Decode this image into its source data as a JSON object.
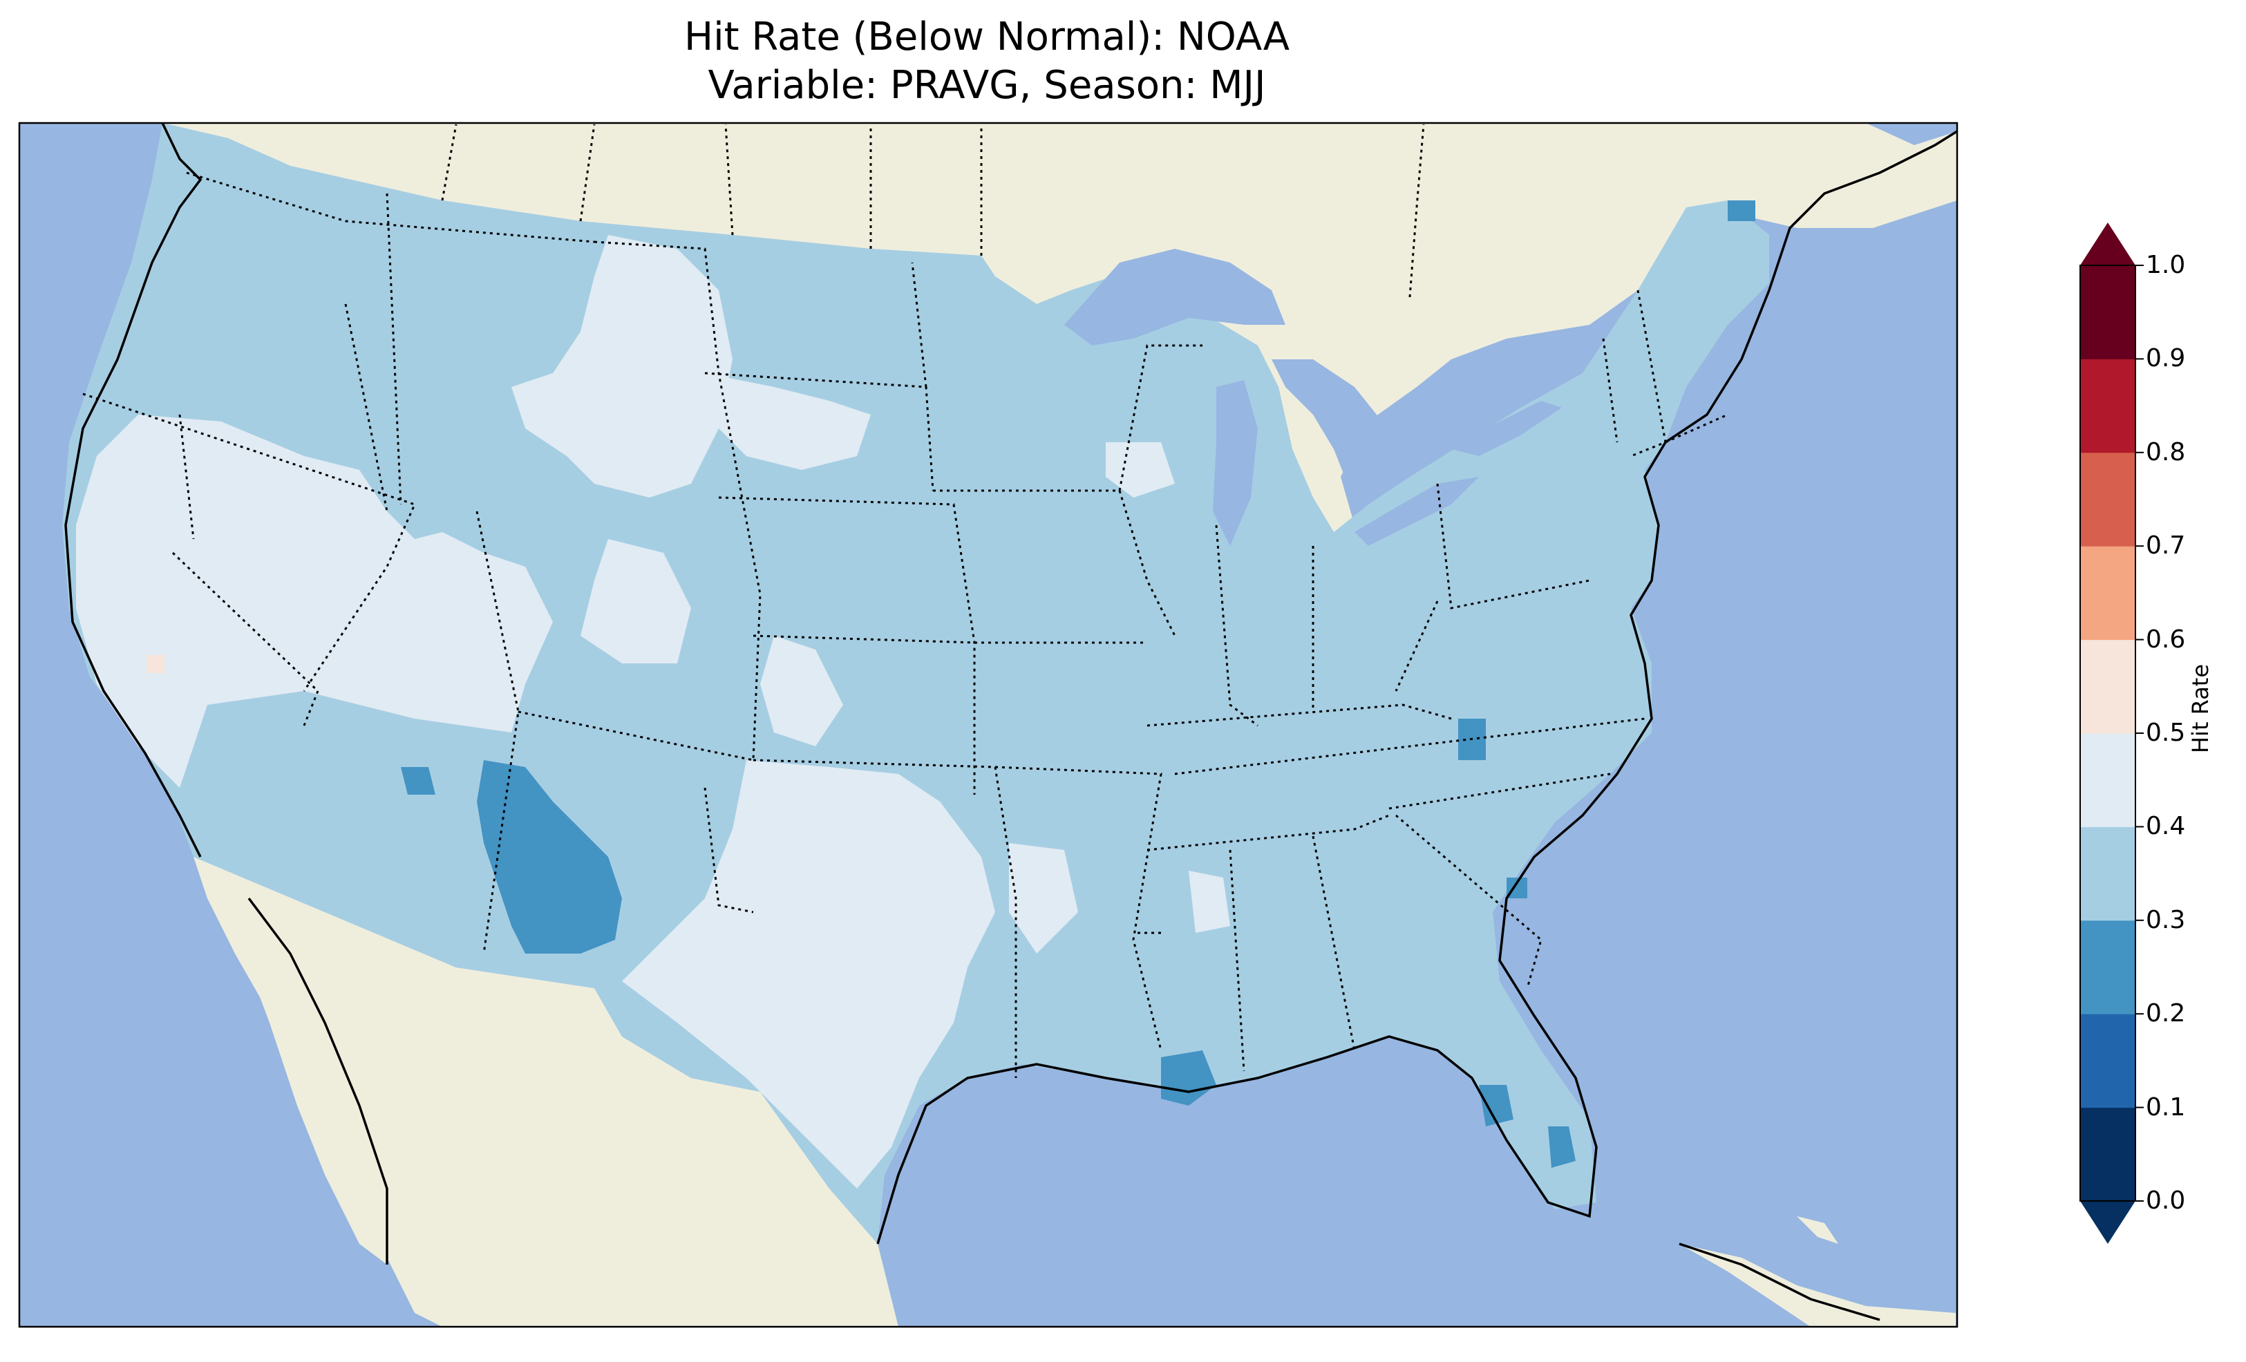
{
  "title": {
    "line1": "Hit Rate (Below Normal): NOAA",
    "line2": "Variable: PRAVG, Season: MJJ"
  },
  "colorbar": {
    "label": "Hit Rate",
    "ticks": [
      "0.0",
      "0.1",
      "0.2",
      "0.3",
      "0.4",
      "0.5",
      "0.6",
      "0.7",
      "0.8",
      "0.9",
      "1.0"
    ],
    "bins": [
      {
        "range": [
          0.0,
          0.1
        ],
        "color": "#053061"
      },
      {
        "range": [
          0.1,
          0.2
        ],
        "color": "#2166ac"
      },
      {
        "range": [
          0.2,
          0.3
        ],
        "color": "#4393c3"
      },
      {
        "range": [
          0.3,
          0.4
        ],
        "color": "#a6cee3"
      },
      {
        "range": [
          0.4,
          0.5
        ],
        "color": "#e1ebf3"
      },
      {
        "range": [
          0.5,
          0.6
        ],
        "color": "#f7e4da"
      },
      {
        "range": [
          0.6,
          0.7
        ],
        "color": "#f4a582"
      },
      {
        "range": [
          0.7,
          0.8
        ],
        "color": "#d6604d"
      },
      {
        "range": [
          0.8,
          0.9
        ],
        "color": "#b2182b"
      },
      {
        "range": [
          0.9,
          1.0
        ],
        "color": "#67001f"
      }
    ],
    "extend": "both"
  },
  "map": {
    "region": "Contiguous United States",
    "ocean_color": "#97b6e1",
    "land_color": "#efeedd",
    "dominant_value_range": [
      0.3,
      0.4
    ],
    "notable_areas": [
      {
        "area": "Great Basin / Nevada",
        "value_range": [
          0.4,
          0.5
        ]
      },
      {
        "area": "Wyoming / Southern Montana",
        "value_range": [
          0.4,
          0.5
        ]
      },
      {
        "area": "Texas",
        "value_range": [
          0.4,
          0.5
        ]
      },
      {
        "area": "Western New Mexico",
        "value_range": [
          0.2,
          0.3
        ]
      },
      {
        "area": "Southeast Louisiana",
        "value_range": [
          0.2,
          0.3
        ]
      },
      {
        "area": "Central Florida",
        "value_range": [
          0.2,
          0.3
        ]
      },
      {
        "area": "Northern Maine",
        "value_range": [
          0.2,
          0.3
        ]
      },
      {
        "area": "Central California",
        "value_range": [
          0.5,
          0.6
        ]
      }
    ]
  }
}
